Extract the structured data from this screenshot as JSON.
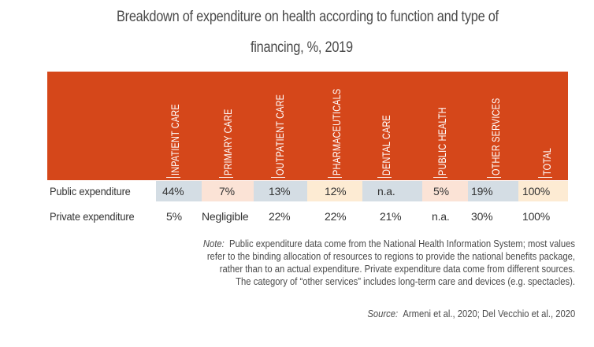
{
  "title": {
    "line1": "Breakdown of expenditure on health according to function and type of",
    "line2": "financing, %, 2019"
  },
  "colors": {
    "header_band": "#d5471a",
    "header_text": "#ffffff",
    "shade_blue": "#d4dde4",
    "shade_peach": "#fbe3d6",
    "shade_cream": "#fdebd3",
    "shade_gray": "#e5e6e8"
  },
  "table": {
    "columns": [
      "INPATIENT CARE",
      "PRIMARY CARE",
      "OUTPATIENT CARE",
      "PHARMACEUTICALS",
      "DENTAL CARE",
      "PUBLIC HEALTH",
      "OTHER SERVICES",
      "TOTAL"
    ],
    "rows": [
      {
        "label": "Public expenditure",
        "values": [
          "44%",
          "7%",
          "13%",
          "12%",
          "n.a.",
          "5%",
          "19%",
          "100%"
        ]
      },
      {
        "label": "Private expenditure",
        "values": [
          "5%",
          "Negligible",
          "22%",
          "22%",
          "21%",
          "n.a.",
          "30%",
          "100%"
        ]
      }
    ]
  },
  "note": {
    "prefix": "Note:",
    "line1": "Public expenditure data come from the National Health Information System; most values",
    "line2": "refer to the binding allocation of resources to regions to provide the national benefits package,",
    "line3": "rather than to an actual expenditure. Private expenditure data come from different sources.",
    "line4": "The category of “other services” includes long-term care and devices (e.g. spectacles)."
  },
  "source": {
    "prefix": "Source:",
    "text": "Armeni et al., 2020; Del Vecchio et al., 2020"
  }
}
